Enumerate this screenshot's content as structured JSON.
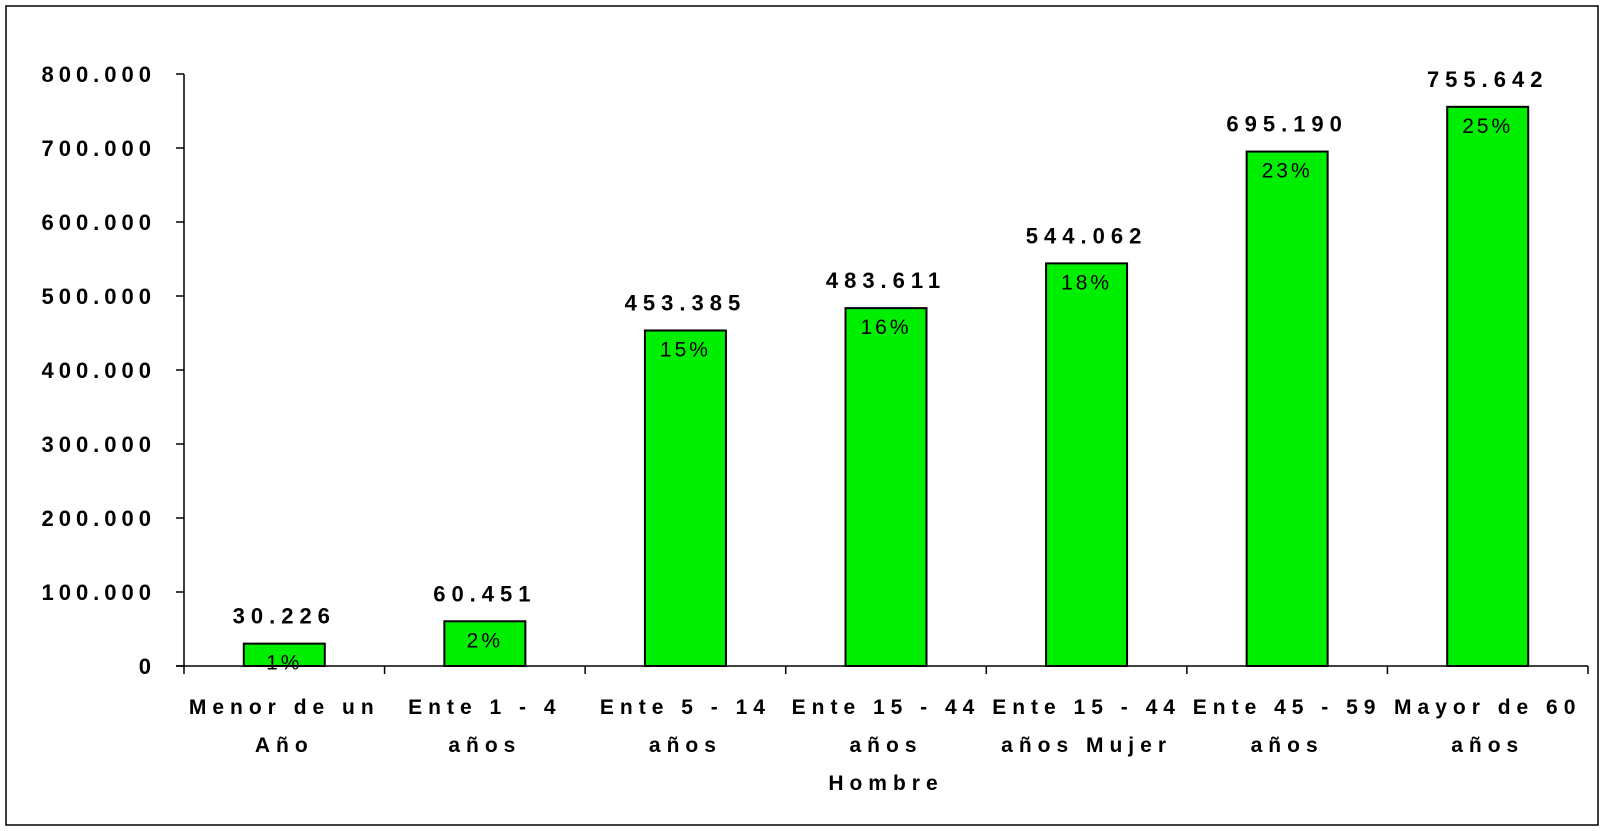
{
  "chart_data": {
    "type": "bar",
    "title": "",
    "xlabel": "",
    "ylabel": "",
    "ylim": [
      0,
      800000
    ],
    "y_ticks": [
      {
        "value": 0,
        "label": "0"
      },
      {
        "value": 100000,
        "label": "100.000"
      },
      {
        "value": 200000,
        "label": "200.000"
      },
      {
        "value": 300000,
        "label": "300.000"
      },
      {
        "value": 400000,
        "label": "400.000"
      },
      {
        "value": 500000,
        "label": "500.000"
      },
      {
        "value": 600000,
        "label": "600.000"
      },
      {
        "value": 700000,
        "label": "700.000"
      },
      {
        "value": 800000,
        "label": "800.000"
      }
    ],
    "grid": false,
    "legend": "none",
    "bar_color": "#00ee00",
    "categories": [
      [
        "Menor de un",
        "Año"
      ],
      [
        "Ente 1 - 4",
        "años"
      ],
      [
        "Ente 5 - 14",
        "años"
      ],
      [
        "Ente 15 - 44",
        "años",
        "Hombre"
      ],
      [
        "Ente 15 - 44",
        "años Mujer"
      ],
      [
        "Ente 45 - 59",
        "años"
      ],
      [
        "Mayor de 60",
        "años"
      ]
    ],
    "values": [
      30226,
      60451,
      453385,
      483611,
      544062,
      695190,
      755642
    ],
    "value_labels": [
      "30.226",
      "60.451",
      "453.385",
      "483.611",
      "544.062",
      "695.190",
      "755.642"
    ],
    "percent_labels": [
      "1%",
      "2%",
      "15%",
      "16%",
      "18%",
      "23%",
      "25%"
    ]
  }
}
